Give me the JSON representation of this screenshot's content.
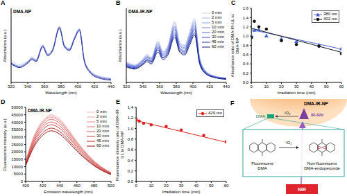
{
  "chart_data": [
    {
      "panel": "A",
      "type": "line",
      "title": "DMA-NP",
      "x_label": "Wavelength (nm)",
      "y_label": "Absorbance (a.u.)",
      "x": [
        320,
        330,
        340,
        345,
        350,
        358,
        364,
        370,
        378,
        384,
        390,
        396,
        402,
        408,
        415,
        425,
        440
      ],
      "xlim": [
        320,
        440
      ],
      "xticks": [
        320,
        340,
        360,
        380,
        400,
        420,
        440
      ],
      "ylim": [
        0,
        1
      ],
      "tick_labels": "x",
      "series": [
        {
          "color": "#c9cdee",
          "values": [
            0.3,
            0.24,
            0.29,
            0.34,
            0.31,
            0.51,
            0.39,
            0.46,
            0.76,
            0.51,
            0.46,
            0.61,
            0.73,
            0.31,
            0.16,
            0.09,
            0.06
          ]
        },
        {
          "color": "#8e98dd",
          "values": [
            0.27,
            0.22,
            0.28,
            0.33,
            0.3,
            0.5,
            0.38,
            0.45,
            0.75,
            0.5,
            0.45,
            0.6,
            0.72,
            0.3,
            0.15,
            0.08,
            0.05
          ]
        },
        {
          "color": "#5664cc",
          "values": [
            0.26,
            0.21,
            0.27,
            0.32,
            0.29,
            0.49,
            0.37,
            0.44,
            0.74,
            0.49,
            0.44,
            0.59,
            0.71,
            0.29,
            0.14,
            0.07,
            0.04
          ]
        },
        {
          "color": "#1f2f9e",
          "values": [
            0.25,
            0.2,
            0.26,
            0.31,
            0.28,
            0.48,
            0.36,
            0.43,
            0.73,
            0.48,
            0.43,
            0.58,
            0.7,
            0.28,
            0.13,
            0.06,
            0.03
          ]
        }
      ]
    },
    {
      "panel": "B",
      "type": "line",
      "title": "DMA-IR-NP",
      "x_label": "Wavelength (nm)",
      "y_label": "Absorbance (a.u.)",
      "x": [
        320,
        330,
        340,
        345,
        350,
        358,
        364,
        370,
        378,
        384,
        390,
        396,
        402,
        408,
        415,
        425,
        440
      ],
      "xlim": [
        320,
        440
      ],
      "xticks": [
        320,
        340,
        360,
        380,
        400,
        420,
        440
      ],
      "ylim": [
        0,
        1
      ],
      "tick_labels": "x",
      "legend": "upper right",
      "series": [
        {
          "name": "0 min",
          "color": "#c6cdf0",
          "values": [
            0.28,
            0.24,
            0.32,
            0.38,
            0.34,
            0.56,
            0.42,
            0.5,
            0.82,
            0.55,
            0.5,
            0.68,
            0.86,
            0.34,
            0.16,
            0.09,
            0.06
          ]
        },
        {
          "name": "2 min",
          "color": "#a9b4ea",
          "values": [
            0.27,
            0.23,
            0.31,
            0.37,
            0.33,
            0.54,
            0.41,
            0.49,
            0.8,
            0.53,
            0.49,
            0.66,
            0.83,
            0.33,
            0.16,
            0.09,
            0.06
          ]
        },
        {
          "name": "5 min",
          "color": "#8c9ae3",
          "values": [
            0.26,
            0.22,
            0.3,
            0.35,
            0.32,
            0.52,
            0.39,
            0.47,
            0.76,
            0.51,
            0.47,
            0.63,
            0.8,
            0.32,
            0.15,
            0.08,
            0.06
          ]
        },
        {
          "name": "10 min",
          "color": "#6f80dc",
          "values": [
            0.25,
            0.22,
            0.29,
            0.34,
            0.31,
            0.5,
            0.38,
            0.45,
            0.74,
            0.5,
            0.45,
            0.61,
            0.77,
            0.31,
            0.14,
            0.08,
            0.05
          ]
        },
        {
          "name": "20 min",
          "color": "#5466d4",
          "values": [
            0.24,
            0.21,
            0.28,
            0.33,
            0.29,
            0.48,
            0.36,
            0.43,
            0.71,
            0.47,
            0.43,
            0.58,
            0.74,
            0.29,
            0.14,
            0.08,
            0.05
          ]
        },
        {
          "name": "30 min",
          "color": "#3a4cc8",
          "values": [
            0.23,
            0.2,
            0.26,
            0.31,
            0.28,
            0.46,
            0.34,
            0.41,
            0.67,
            0.45,
            0.41,
            0.56,
            0.71,
            0.28,
            0.13,
            0.07,
            0.05
          ]
        },
        {
          "name": "45 min",
          "color": "#2433a8",
          "values": [
            0.22,
            0.19,
            0.25,
            0.3,
            0.27,
            0.44,
            0.33,
            0.39,
            0.64,
            0.43,
            0.39,
            0.53,
            0.67,
            0.27,
            0.12,
            0.07,
            0.05
          ]
        },
        {
          "name": "60 min",
          "color": "#141f80",
          "values": [
            0.21,
            0.18,
            0.24,
            0.28,
            0.25,
            0.41,
            0.31,
            0.37,
            0.61,
            0.41,
            0.37,
            0.5,
            0.64,
            0.25,
            0.12,
            0.07,
            0.04
          ]
        }
      ]
    },
    {
      "panel": "C",
      "type": "scatter",
      "x_label": "Irradiation time (min)",
      "y_label": "Absorbance ratio of DMA-IR-UL to DMA-NP",
      "x": [
        0,
        2,
        5,
        10,
        20,
        30,
        45,
        60
      ],
      "xlim": [
        0,
        60
      ],
      "xticks": [
        0,
        10,
        20,
        30,
        40,
        50,
        60
      ],
      "ylim": [
        0,
        1.6
      ],
      "yticks": [
        {
          "value": 0,
          "label": "0.0"
        },
        0.2,
        0.4,
        0.6,
        0.8,
        {
          "value": 1,
          "label": "1.0"
        },
        1.2,
        1.4,
        1.6
      ],
      "legend": "upper right",
      "series": [
        {
          "name": "380 nm",
          "color": "#4a5fd0",
          "marker": "triangle",
          "values": [
            1.0,
            1.12,
            1.13,
            1.0,
            0.93,
            0.88,
            0.8,
            0.72
          ],
          "fit": {
            "x": [
              0,
              60
            ],
            "values": [
              1.14,
              0.72
            ]
          }
        },
        {
          "name": "402 nm",
          "color": "#111111",
          "marker": "circle",
          "values": [
            0.97,
            1.32,
            1.2,
            1.15,
            0.9,
            0.82,
            0.78,
            0.62
          ],
          "fit": {
            "x": [
              0,
              60
            ],
            "values": [
              1.17,
              0.65
            ]
          }
        }
      ]
    },
    {
      "panel": "D",
      "type": "line",
      "title": "DMA-IR-NP",
      "x_label": "Emission wavelength (nm)",
      "y_label": "Fluorescence intensity (a.u.)",
      "x": [
        400,
        410,
        420,
        430,
        440,
        450,
        460,
        470,
        480,
        490,
        500
      ],
      "xlim": [
        400,
        500
      ],
      "xticks": [
        400,
        420,
        440,
        460,
        480,
        500
      ],
      "ylim": [
        0,
        50000
      ],
      "yticks": [
        0,
        5000,
        10000,
        15000,
        20000,
        25000,
        30000,
        35000,
        40000,
        45000,
        50000
      ],
      "legend": "upper right",
      "series": [
        {
          "name": "0 min",
          "color": "#f4b6b6",
          "values": [
            14000,
            31000,
            41000,
            45000,
            42000,
            35000,
            27000,
            20000,
            14000,
            9500,
            6000
          ]
        },
        {
          "name": "2 min",
          "color": "#eea0a0",
          "values": [
            13700,
            30400,
            40200,
            44100,
            41200,
            34300,
            26500,
            19600,
            13700,
            9300,
            5900
          ]
        },
        {
          "name": "5 min",
          "color": "#e88888",
          "values": [
            13400,
            29800,
            39400,
            43200,
            40300,
            33600,
            25900,
            19200,
            13400,
            9100,
            5800
          ]
        },
        {
          "name": "10 min",
          "color": "#e07070",
          "values": [
            13000,
            28800,
            38100,
            41900,
            39100,
            32600,
            25100,
            18600,
            13000,
            8800,
            5600
          ]
        },
        {
          "name": "20 min",
          "color": "#d85858",
          "values": [
            12500,
            27600,
            36500,
            40100,
            37400,
            31200,
            24000,
            17800,
            12500,
            8500,
            5300
          ]
        },
        {
          "name": "30 min",
          "color": "#cc4040",
          "values": [
            11900,
            26400,
            34900,
            38300,
            35700,
            29800,
            23000,
            17000,
            11900,
            8100,
            5100
          ]
        },
        {
          "name": "45 min",
          "color": "#b82828",
          "values": [
            11200,
            24800,
            32800,
            36000,
            33600,
            28000,
            21600,
            16000,
            11200,
            7600,
            4800
          ]
        },
        {
          "name": "60 min",
          "color": "#a01010",
          "values": [
            10600,
            23600,
            31200,
            34200,
            31900,
            26600,
            20500,
            15200,
            10600,
            7200,
            4600
          ]
        }
      ]
    },
    {
      "panel": "E",
      "type": "scatter",
      "x_label": "Irradiation time (min)",
      "y_label": "Fluorescence intensity ratio of DMA-IR-UL to DMA-NP",
      "x": [
        0,
        2,
        5,
        10,
        20,
        30,
        45,
        60
      ],
      "xlim": [
        0,
        60
      ],
      "xticks": [
        0,
        10,
        20,
        30,
        40,
        50,
        60
      ],
      "ylim": [
        0,
        1.4
      ],
      "yticks": [
        {
          "value": 0,
          "label": "0.0"
        },
        0.2,
        0.4,
        0.6,
        0.8,
        {
          "value": 1,
          "label": "1.0"
        },
        1.2,
        1.4
      ],
      "legend": "upper right",
      "series": [
        {
          "name": "429 nm",
          "color": "#e02020",
          "marker": "circle",
          "values": [
            1.17,
            1.14,
            1.1,
            1.07,
            1.04,
            0.97,
            0.87,
            0.75
          ],
          "fit": {
            "x": [
              0,
              60
            ],
            "values": [
              1.15,
              0.74
            ]
          }
        }
      ]
    }
  ],
  "diagram": {
    "panel": "F",
    "particle": "DMA-IR-NP",
    "dye_label": "DMA",
    "photosensitizer": "IR-820",
    "singlet_oxygen": "¹O₂",
    "reactant_label": [
      "Fluorescent",
      "DMA"
    ],
    "product_label": [
      "Non-fluorescent",
      "DMA-endoperoxide"
    ],
    "peroxide_atoms": [
      "O",
      "O"
    ],
    "light": "NIR"
  }
}
